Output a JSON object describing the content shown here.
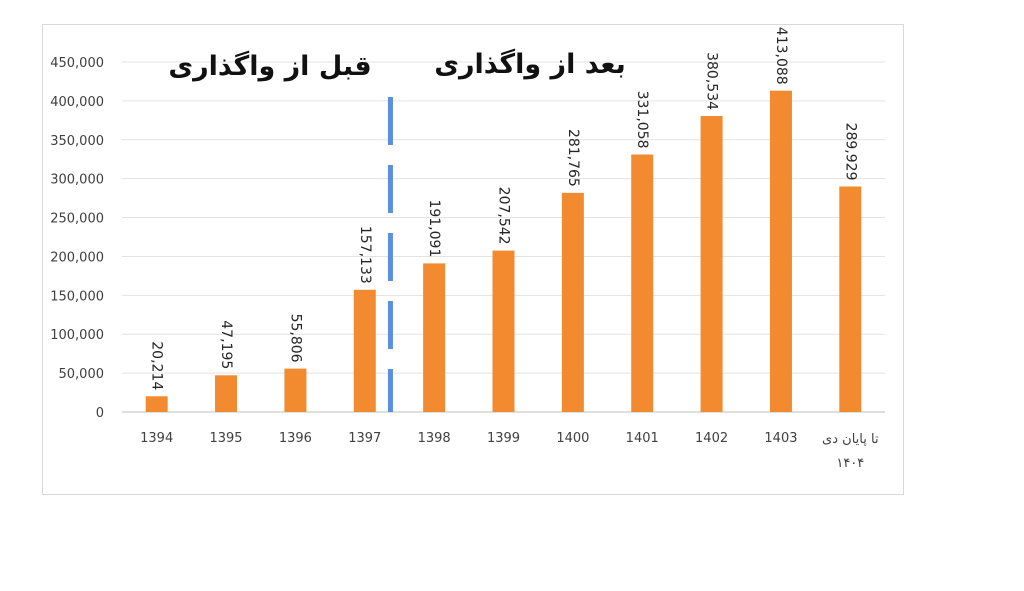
{
  "chart_data": {
    "type": "bar",
    "categories": [
      "1394",
      "1395",
      "1396",
      "1397",
      "1398",
      "1399",
      "1400",
      "1401",
      "1402",
      "1403",
      "تا پایان دی ۱۴۰۴"
    ],
    "values": [
      20214,
      47195,
      55806,
      157133,
      191091,
      207542,
      281765,
      331058,
      380534,
      413088,
      289929
    ],
    "data_labels": [
      "20,214",
      "47,195",
      "55,806",
      "157,133",
      "191,091",
      "207,542",
      "281,765",
      "331,058",
      "380,534",
      "413,088",
      "289,929"
    ],
    "yticks": [
      "0",
      "50,000",
      "100,000",
      "150,000",
      "200,000",
      "250,000",
      "300,000",
      "350,000",
      "400,000",
      "450,000"
    ],
    "ylim": [
      0,
      450000
    ],
    "grid": true,
    "legend": "none",
    "bar_color": "#f28a30",
    "divider_color": "#5b8fe0",
    "annotations": {
      "before": "قبل از واگذاری",
      "after": "بعد از واگذاری"
    }
  }
}
